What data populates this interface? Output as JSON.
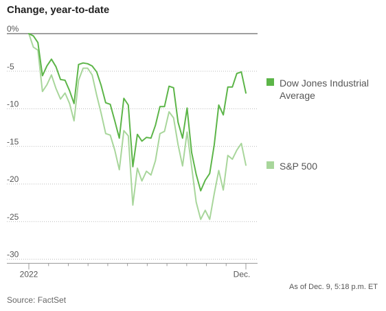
{
  "chart_data": {
    "type": "line",
    "title": "Change, year-to-date",
    "xlabel": "",
    "ylabel": "",
    "ylim": [
      -30,
      0
    ],
    "y_ticks": [
      0,
      -5,
      -10,
      -15,
      -20,
      -25,
      -30
    ],
    "y_tick_labels": [
      "0%",
      "-5",
      "-10",
      "-15",
      "-20",
      "-25",
      "-30"
    ],
    "x_tick_labels": [
      "2022",
      "Dec."
    ],
    "grid": "horizontal, dotted",
    "legend_position": "right",
    "note": "As of Dec. 9, 5:18 p.m. ET",
    "source": "Source: FactSet",
    "series": [
      {
        "name": "Dow Jones Industrial Average",
        "color": "#5cb548",
        "values": [
          0,
          -0.3,
          -1.2,
          -5.6,
          -4.3,
          -3.4,
          -4.4,
          -6.1,
          -6.2,
          -7.6,
          -9.3,
          -4.1,
          -3.9,
          -4.0,
          -4.3,
          -5.1,
          -6.9,
          -9.2,
          -9.4,
          -11.6,
          -13.9,
          -8.6,
          -9.5,
          -17.7,
          -13.4,
          -14.3,
          -13.8,
          -13.9,
          -12.2,
          -9.7,
          -9.7,
          -7.0,
          -7.2,
          -11.8,
          -13.9,
          -9.9,
          -15.8,
          -18.7,
          -20.9,
          -19.5,
          -18.6,
          -14.8,
          -9.5,
          -10.8,
          -7.1,
          -7.1,
          -5.3,
          -5.1,
          -7.9
        ]
      },
      {
        "name": "S&P 500",
        "color": "#a8d69b",
        "values": [
          0,
          -1.8,
          -2.2,
          -7.7,
          -6.8,
          -5.5,
          -7.3,
          -8.7,
          -7.9,
          -9.3,
          -11.6,
          -6.2,
          -4.6,
          -4.6,
          -5.5,
          -8.2,
          -10.6,
          -13.3,
          -13.5,
          -15.5,
          -18.1,
          -12.9,
          -13.6,
          -22.8,
          -17.9,
          -19.6,
          -18.3,
          -18.8,
          -16.9,
          -13.3,
          -13.0,
          -10.4,
          -11.2,
          -14.8,
          -17.6,
          -13.1,
          -17.7,
          -22.4,
          -24.7,
          -23.5,
          -24.7,
          -21.3,
          -18.2,
          -20.8,
          -16.2,
          -16.7,
          -15.5,
          -14.6,
          -17.5
        ]
      }
    ]
  }
}
